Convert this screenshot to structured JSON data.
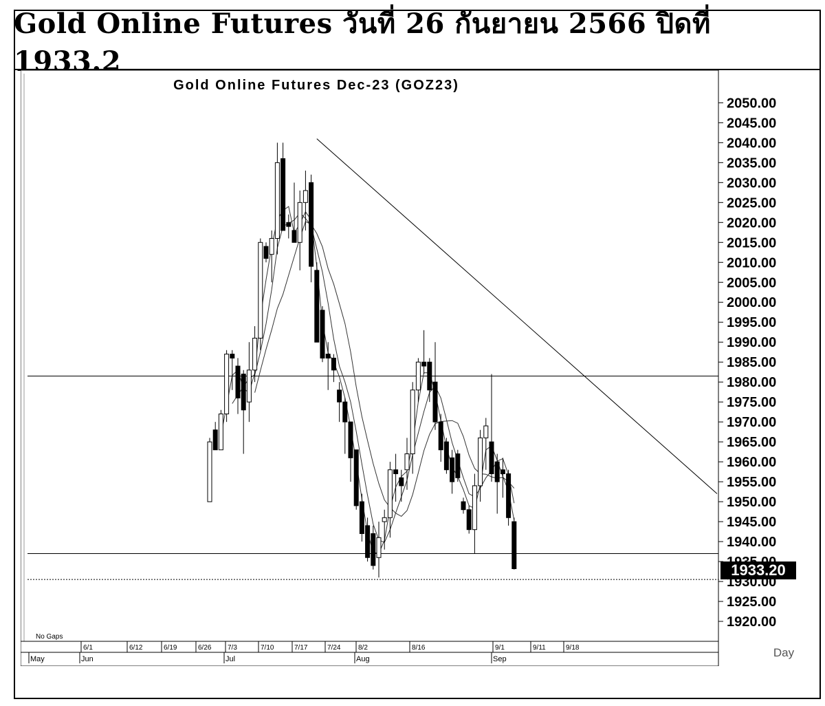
{
  "header": {
    "title": "Gold Online Futures วันที่ 26 กันยายน 2566 ปิดที่ 1933.2"
  },
  "chart_data": {
    "type": "candlestick",
    "title": "Gold Online Futures Dec-23 (GOZ23)",
    "y_axis": {
      "ticks": [
        "2050.00",
        "2045.00",
        "2040.00",
        "2035.00",
        "2030.00",
        "2025.00",
        "2020.00",
        "2015.00",
        "2010.00",
        "2005.00",
        "2000.00",
        "1995.00",
        "1990.00",
        "1985.00",
        "1980.00",
        "1975.00",
        "1970.00",
        "1965.00",
        "1960.00",
        "1955.00",
        "1950.00",
        "1945.00",
        "1940.00",
        "1935.00",
        "1930.00",
        "1925.00",
        "1920.00"
      ],
      "range": [
        1915,
        2053
      ]
    },
    "last_price": "1933.20",
    "period_label": "Day",
    "gaps_label": "No Gaps",
    "x_axis": {
      "date_ticks": [
        "6/1",
        "6/12",
        "6/19",
        "6/26",
        "7/3",
        "7/10",
        "7/17",
        "7/24",
        "8/2",
        "8/16",
        "9/1",
        "9/11",
        "9/18"
      ],
      "month_labels": [
        "May",
        "Jun",
        "Jul",
        "Aug",
        "Sep"
      ]
    },
    "horizontal_levels": [
      1981.5,
      1937,
      1930.5
    ],
    "trendline": {
      "from": {
        "index": 19,
        "value": 2041
      },
      "to": {
        "index": 90,
        "value": 1952
      }
    },
    "candles": [
      {
        "o": 1950,
        "h": 1966,
        "l": 1950,
        "c": 1965
      },
      {
        "o": 1968,
        "h": 1970,
        "l": 1963,
        "c": 1963
      },
      {
        "o": 1963,
        "h": 1973,
        "l": 1963,
        "c": 1972
      },
      {
        "o": 1972,
        "h": 1988,
        "l": 1970,
        "c": 1987
      },
      {
        "o": 1987,
        "h": 1988,
        "l": 1978,
        "c": 1986
      },
      {
        "o": 1984,
        "h": 1986,
        "l": 1972,
        "c": 1976
      },
      {
        "o": 1982,
        "h": 1983,
        "l": 1962,
        "c": 1973
      },
      {
        "o": 1975,
        "h": 1990,
        "l": 1970,
        "c": 1983
      },
      {
        "o": 1983,
        "h": 1994,
        "l": 1980,
        "c": 1991
      },
      {
        "o": 1991,
        "h": 2016,
        "l": 1988,
        "c": 2015
      },
      {
        "o": 2014,
        "h": 2015,
        "l": 2010,
        "c": 2011
      },
      {
        "o": 2012,
        "h": 2018,
        "l": 2005,
        "c": 2016
      },
      {
        "o": 2016,
        "h": 2040,
        "l": 2012,
        "c": 2035
      },
      {
        "o": 2036,
        "h": 2040,
        "l": 2018,
        "c": 2018
      },
      {
        "o": 2020,
        "h": 2022,
        "l": 2016,
        "c": 2019
      },
      {
        "o": 2018,
        "h": 2030,
        "l": 2015,
        "c": 2015
      },
      {
        "o": 2015,
        "h": 2028,
        "l": 2008,
        "c": 2025
      },
      {
        "o": 2025,
        "h": 2033,
        "l": 2018,
        "c": 2028
      },
      {
        "o": 2030,
        "h": 2032,
        "l": 2005,
        "c": 2009
      },
      {
        "o": 2008,
        "h": 2010,
        "l": 1990,
        "c": 1990
      },
      {
        "o": 1998,
        "h": 1999,
        "l": 1985,
        "c": 1986
      },
      {
        "o": 1987,
        "h": 1990,
        "l": 1978,
        "c": 1986
      },
      {
        "o": 1986,
        "h": 1987,
        "l": 1980,
        "c": 1983
      },
      {
        "o": 1978,
        "h": 1980,
        "l": 1970,
        "c": 1975
      },
      {
        "o": 1975,
        "h": 1976,
        "l": 1962,
        "c": 1970
      },
      {
        "o": 1970,
        "h": 1970,
        "l": 1955,
        "c": 1961
      },
      {
        "o": 1963,
        "h": 1963,
        "l": 1948,
        "c": 1949
      },
      {
        "o": 1950,
        "h": 1952,
        "l": 1940,
        "c": 1942
      },
      {
        "o": 1944,
        "h": 1946,
        "l": 1935,
        "c": 1936
      },
      {
        "o": 1942,
        "h": 1944,
        "l": 1933,
        "c": 1934
      },
      {
        "o": 1936,
        "h": 1945,
        "l": 1931,
        "c": 1941
      },
      {
        "o": 1945,
        "h": 1948,
        "l": 1938,
        "c": 1946
      },
      {
        "o": 1946,
        "h": 1960,
        "l": 1941,
        "c": 1958
      },
      {
        "o": 1958,
        "h": 1962,
        "l": 1950,
        "c": 1957
      },
      {
        "o": 1956,
        "h": 1958,
        "l": 1950,
        "c": 1954
      },
      {
        "o": 1958,
        "h": 1966,
        "l": 1953,
        "c": 1962
      },
      {
        "o": 1962,
        "h": 1980,
        "l": 1957,
        "c": 1978
      },
      {
        "o": 1978,
        "h": 1986,
        "l": 1975,
        "c": 1985
      },
      {
        "o": 1985,
        "h": 1993,
        "l": 1982,
        "c": 1984
      },
      {
        "o": 1985,
        "h": 1986,
        "l": 1975,
        "c": 1978
      },
      {
        "o": 1980,
        "h": 1990,
        "l": 1968,
        "c": 1970
      },
      {
        "o": 1970,
        "h": 1972,
        "l": 1960,
        "c": 1963
      },
      {
        "o": 1965,
        "h": 1966,
        "l": 1957,
        "c": 1958
      },
      {
        "o": 1961,
        "h": 1963,
        "l": 1952,
        "c": 1955
      },
      {
        "o": 1962,
        "h": 1963,
        "l": 1955,
        "c": 1956
      },
      {
        "o": 1950,
        "h": 1951,
        "l": 1947,
        "c": 1948
      },
      {
        "o": 1948,
        "h": 1949,
        "l": 1942,
        "c": 1943
      },
      {
        "o": 1943,
        "h": 1957,
        "l": 1937,
        "c": 1954
      },
      {
        "o": 1954,
        "h": 1968,
        "l": 1950,
        "c": 1966
      },
      {
        "o": 1966,
        "h": 1971,
        "l": 1958,
        "c": 1969
      },
      {
        "o": 1965,
        "h": 1982,
        "l": 1955,
        "c": 1957
      },
      {
        "o": 1960,
        "h": 1962,
        "l": 1947,
        "c": 1955
      },
      {
        "o": 1958,
        "h": 1961,
        "l": 1951,
        "c": 1957
      },
      {
        "o": 1957,
        "h": 1958,
        "l": 1944,
        "c": 1946
      },
      {
        "o": 1945,
        "h": 1946,
        "l": 1933,
        "c": 1933.2
      }
    ]
  }
}
